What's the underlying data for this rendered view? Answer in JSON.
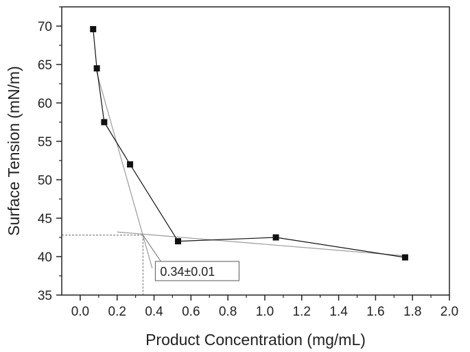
{
  "chart_data": {
    "type": "scatter",
    "xlabel": "Product Concentration (mg/mL)",
    "ylabel": "Surface Tension (mN/m)",
    "xlim": [
      -0.1,
      2.0
    ],
    "ylim": [
      35,
      72.5
    ],
    "x_ticks": [
      "0.0",
      "0.2",
      "0.4",
      "0.6",
      "0.8",
      "1.0",
      "1.2",
      "1.4",
      "1.6",
      "1.8",
      "2.0"
    ],
    "y_ticks": [
      "35",
      "40",
      "45",
      "50",
      "55",
      "60",
      "65",
      "70"
    ],
    "grid": false,
    "series": [
      {
        "x": [
          0.07,
          0.09,
          0.13,
          0.27,
          0.53,
          1.06,
          1.76
        ],
        "y": [
          69.6,
          64.5,
          57.5,
          52.0,
          42.0,
          42.5,
          39.9
        ],
        "marker": "square",
        "connected": true
      }
    ],
    "fit_lines": [
      {
        "x": [
          0.08,
          0.39
        ],
        "y": [
          64.8,
          38.5
        ]
      },
      {
        "x": [
          0.2,
          1.76
        ],
        "y": [
          43.2,
          40.1
        ]
      }
    ],
    "intersection": {
      "x": 0.34,
      "y": 42.8
    },
    "annotation": {
      "text": "0.34±0.01",
      "anchor_x": 0.34,
      "anchor_y": 42.8
    },
    "colors": {
      "markers": "#111111",
      "connect_line": "#111111",
      "fit_line": "#999999",
      "guide_line": "#666666"
    }
  }
}
